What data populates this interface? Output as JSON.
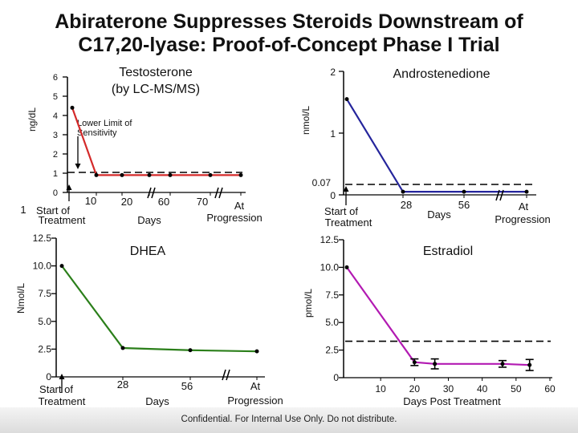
{
  "slide": {
    "title_line1": "Abiraterone Suppresses Steroids Downstream of",
    "title_line2": "C17,20-lyase: Proof-of-Concept Phase I Trial",
    "footer": "Confidential. For Internal Use Only. Do not distribute."
  },
  "colors": {
    "red": "#d42a2a",
    "blue": "#25259c",
    "green": "#2b7f1a",
    "purple": "#b21ab2",
    "axis": "#000000"
  },
  "chart_data": [
    {
      "id": "testosterone",
      "type": "line",
      "title": "Testosterone (by LC-MS/MS)",
      "ylabel": "ng/dL",
      "xlabel": "Days",
      "y_ticks": [
        "0",
        "1",
        "2",
        "3",
        "4",
        "5",
        "6"
      ],
      "ylim": [
        0,
        6
      ],
      "x_ticks": [
        "Start of Treatment",
        "10",
        "20",
        "60",
        "70",
        "At Progression"
      ],
      "x_extra_label": "1",
      "points": [
        {
          "x": "Start",
          "y": 4.4
        },
        {
          "x": "Day 10",
          "y": 0.9
        },
        {
          "x": "Day 20",
          "y": 0.9
        },
        {
          "x": "Day 40",
          "y": 0.9
        },
        {
          "x": "Day 50",
          "y": 0.9
        },
        {
          "x": "Day 70",
          "y": 0.9
        },
        {
          "x": "At Progression",
          "y": 0.9
        }
      ],
      "reference_line": {
        "label": "Lower Limit of Sensitivity",
        "y": 1.0
      }
    },
    {
      "id": "androstenedione",
      "type": "line",
      "title": "Androstenedione",
      "ylabel": "nmol/L",
      "xlabel": "Days",
      "y_ticks": [
        "0",
        "1",
        "2"
      ],
      "y_ref_label": "0.07",
      "ylim": [
        0,
        2
      ],
      "x_ticks": [
        "Start of Treatment",
        "28",
        "56",
        "At Progression"
      ],
      "points": [
        {
          "x": "Start",
          "y": 1.55
        },
        {
          "x": "Day 28",
          "y": 0.05
        },
        {
          "x": "Day 56",
          "y": 0.05
        },
        {
          "x": "At Progression",
          "y": 0.05
        }
      ],
      "reference_line": {
        "y": 0.07
      }
    },
    {
      "id": "dhea",
      "type": "line",
      "title": "DHEA",
      "ylabel": "Nmol/L",
      "xlabel": "Days",
      "y_ticks": [
        "0",
        "2.5",
        "5.0",
        "7.5",
        "10.0",
        "12.5"
      ],
      "ylim": [
        0,
        12.5
      ],
      "x_ticks": [
        "Start of Treatment",
        "28",
        "56",
        "At Progression"
      ],
      "points": [
        {
          "x": "Start",
          "y": 10.0
        },
        {
          "x": "Day 28",
          "y": 2.6
        },
        {
          "x": "Day 56",
          "y": 2.4
        },
        {
          "x": "At Progression",
          "y": 2.3
        }
      ]
    },
    {
      "id": "estradiol",
      "type": "line",
      "title": "Estradiol",
      "ylabel": "pmol/L",
      "xlabel": "Days Post Treatment",
      "y_ticks": [
        "0",
        "2.5",
        "5.0",
        "7.5",
        "10.0",
        "12.5"
      ],
      "ylim": [
        0,
        12.5
      ],
      "x_ticks": [
        "10",
        "20",
        "30",
        "40",
        "50",
        "60"
      ],
      "xlim": [
        0,
        60
      ],
      "points": [
        {
          "x": 0,
          "y": 10.0,
          "err": 0.0
        },
        {
          "x": 20,
          "y": 1.4,
          "err": 0.3
        },
        {
          "x": 26,
          "y": 1.25,
          "err": 0.45
        },
        {
          "x": 46,
          "y": 1.25,
          "err": 0.3
        },
        {
          "x": 54,
          "y": 1.15,
          "err": 0.5
        }
      ],
      "reference_line": {
        "y": 3.3
      }
    }
  ]
}
